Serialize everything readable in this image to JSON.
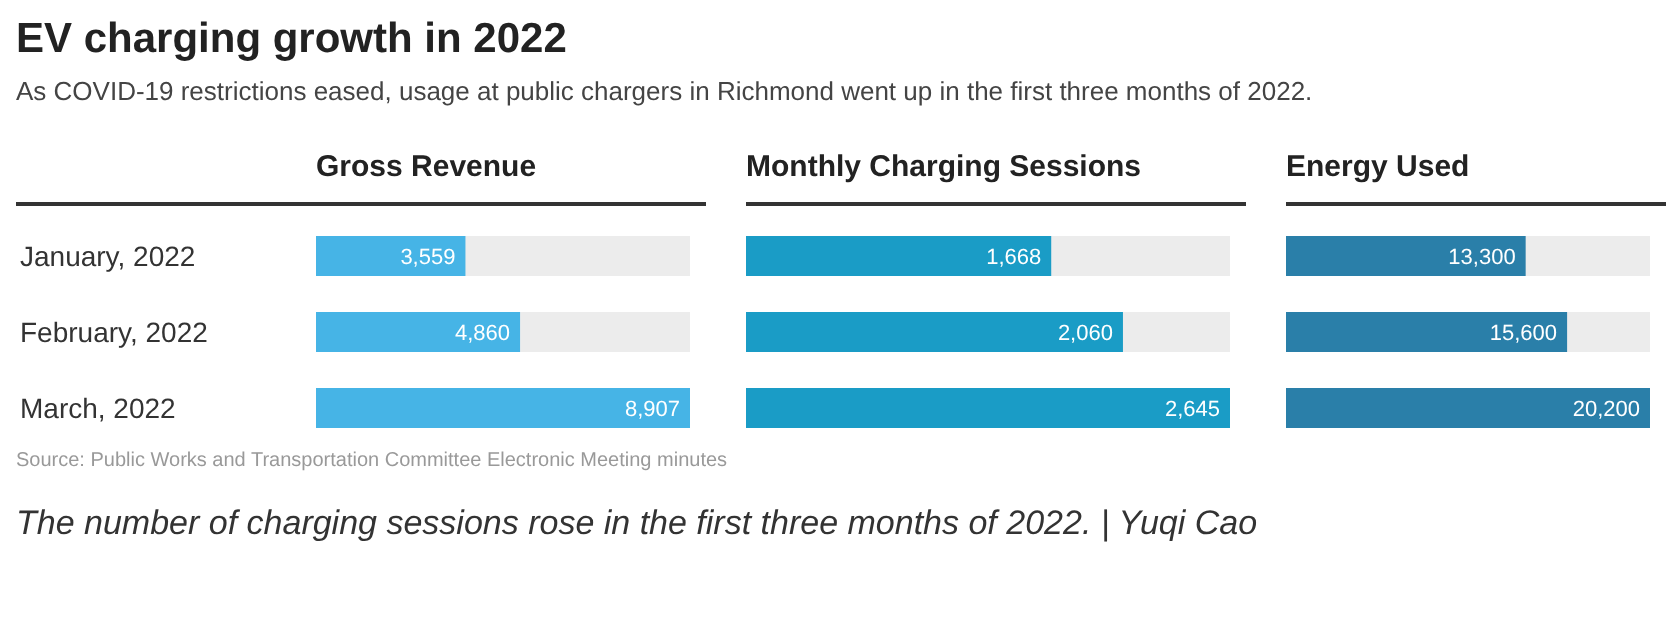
{
  "chart_data": [
    {
      "type": "bar",
      "orientation": "horizontal",
      "title": "EV charging growth in 2022",
      "subtitle": "As COVID-19 restrictions eased, usage at public chargers in Richmond went up in the first three months of 2022.",
      "xlabel": "Gross Revenue",
      "categories": [
        "January, 2022",
        "February, 2022",
        "March, 2022"
      ],
      "values": [
        3559,
        4860,
        8907
      ],
      "value_labels": [
        "3,559",
        "4,860",
        "8,907"
      ],
      "color": "#46b4e6",
      "tick_labels": "y",
      "annotations": [
        "Source: Public Works and Transportation Committee Electronic Meeting minutes",
        "The number of charging sessions rose in the first three months of 2022. | Yuqi Cao"
      ]
    },
    {
      "type": "bar",
      "orientation": "horizontal",
      "xlabel": "Monthly Charging Sessions",
      "values": [
        1668,
        2060,
        2645
      ],
      "value_labels": [
        "1,668",
        "2,060",
        "2,645"
      ],
      "color": "#1a9cc6",
      "tick_labels": false
    },
    {
      "type": "bar",
      "orientation": "horizontal",
      "xlabel": "Energy Used",
      "values": [
        13300,
        15600,
        20200
      ],
      "value_labels": [
        "13,300",
        "15,600",
        "20,200"
      ],
      "color": "#2a7fa9",
      "tick_labels": false
    }
  ]
}
